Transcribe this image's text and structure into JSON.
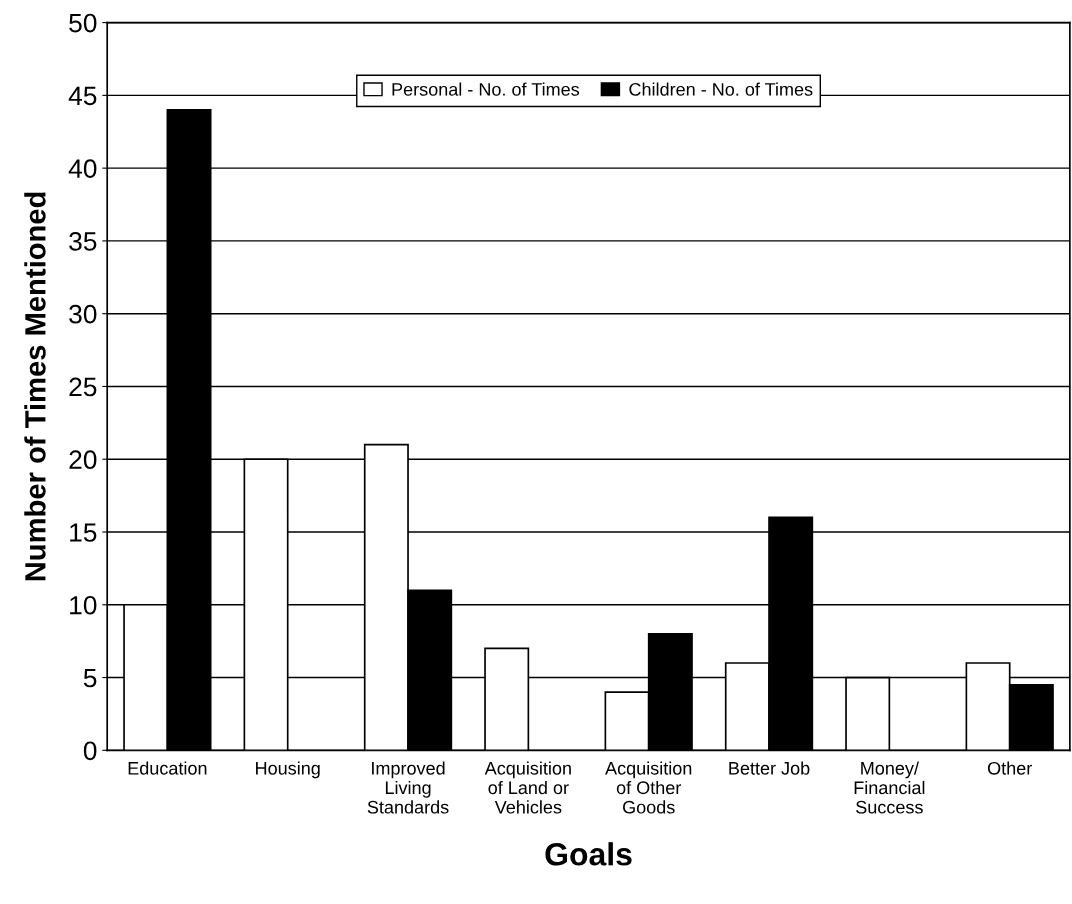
{
  "chart_data": {
    "type": "bar",
    "xlabel": "Goals",
    "ylabel": "Number of Times Mentioned",
    "categories": [
      "Education",
      "Housing",
      "Improved\nLiving\nStandards",
      "Acquisition\nof Land or\nVehicles",
      "Acquisition\nof Other\nGoods",
      "Better Job",
      "Money/\nFinancial\nSuccess",
      "Other"
    ],
    "series": [
      {
        "name": "Personal - No. of Times",
        "color": "#ffffff",
        "values": [
          10,
          20,
          21,
          7,
          4,
          6,
          5,
          6
        ]
      },
      {
        "name": "Children - No. of Times",
        "color": "#000000",
        "values": [
          44,
          null,
          11,
          null,
          8,
          16,
          null,
          4.5
        ]
      }
    ],
    "ylim": [
      0,
      50
    ],
    "yticks": [
      0,
      5,
      10,
      15,
      20,
      25,
      30,
      35,
      40,
      45,
      50
    ],
    "grid": "y",
    "legend": "top"
  }
}
